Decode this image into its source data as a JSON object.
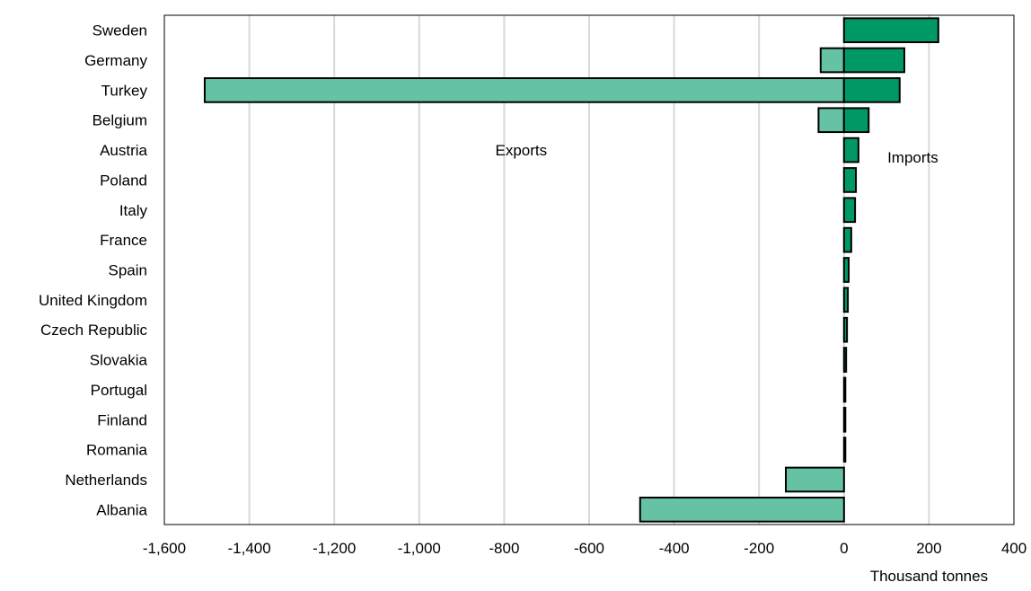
{
  "chart_data": {
    "type": "bar",
    "orientation": "horizontal",
    "categories": [
      "Sweden",
      "Germany",
      "Turkey",
      "Belgium",
      "Austria",
      "Poland",
      "Italy",
      "France",
      "Spain",
      "United Kingdom",
      "Czech Republic",
      "Slovakia",
      "Portugal",
      "Finland",
      "Romania",
      "Netherlands",
      "Albania"
    ],
    "series": [
      {
        "name": "Exports",
        "color": "#66c2a5",
        "values": [
          0,
          -55,
          -1505,
          -60,
          0,
          0,
          0,
          0,
          0,
          0,
          0,
          0,
          0,
          0,
          0,
          -137,
          -480
        ]
      },
      {
        "name": "Imports",
        "color": "#009966",
        "values": [
          222,
          142,
          131,
          58,
          34,
          28,
          26,
          17,
          11,
          9,
          7,
          5,
          3,
          2,
          2,
          0,
          0
        ]
      }
    ],
    "xlabel": "Thousand tonnes",
    "xlim": [
      -1600,
      400
    ],
    "xticks": [
      -1600,
      -1400,
      -1200,
      -1000,
      -800,
      -600,
      -400,
      -200,
      0,
      200,
      400
    ],
    "xtick_labels": [
      "-1,600",
      "-1,400",
      "-1,200",
      "-1,000",
      "-800",
      "-600",
      "-400",
      "-200",
      "0",
      "200",
      "400"
    ],
    "annotations": [
      "Exports",
      "Imports"
    ],
    "grid": "vertical",
    "legend": "none"
  }
}
